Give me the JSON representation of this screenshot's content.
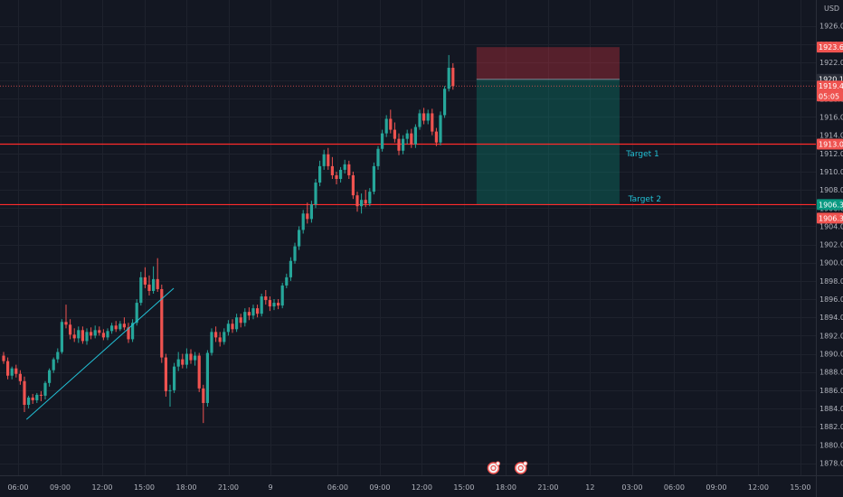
{
  "currency": "USD",
  "chart_data": {
    "type": "candlestick",
    "symbol_currency": "USD",
    "ylim": [
      1878,
      1928
    ],
    "y_ticks": [
      "1878.00",
      "1880.00",
      "1882.00",
      "1884.00",
      "1886.00",
      "1888.00",
      "1890.00",
      "1892.00",
      "1894.00",
      "1896.00",
      "1898.00",
      "1900.00",
      "1902.00",
      "1904.00",
      "1906.00",
      "1908.00",
      "1910.00",
      "1912.00",
      "1914.00",
      "1916.00",
      "1918.00",
      "1920.00",
      "1922.00",
      "1924.00",
      "1926.00"
    ],
    "x_ticks": [
      {
        "label": "06:00",
        "pos": 0.0
      },
      {
        "label": "09:00",
        "pos": 1.0
      },
      {
        "label": "12:00",
        "pos": 2.0
      },
      {
        "label": "15:00",
        "pos": 3.0
      },
      {
        "label": "18:00",
        "pos": 4.0
      },
      {
        "label": "21:00",
        "pos": 5.0
      },
      {
        "label": "9",
        "pos": 6.0
      },
      {
        "label": "06:00",
        "pos": 7.6
      },
      {
        "label": "09:00",
        "pos": 8.6
      },
      {
        "label": "12:00",
        "pos": 9.6
      },
      {
        "label": "15:00",
        "pos": 10.6
      },
      {
        "label": "18:00",
        "pos": 11.6
      },
      {
        "label": "21:00",
        "pos": 12.6
      },
      {
        "label": "12",
        "pos": 13.6
      },
      {
        "label": "03:00",
        "pos": 14.6
      },
      {
        "label": "06:00",
        "pos": 15.6
      },
      {
        "label": "09:00",
        "pos": 16.6
      },
      {
        "label": "12:00",
        "pos": 17.6
      },
      {
        "label": "15:00",
        "pos": 18.6
      }
    ],
    "colors": {
      "up": "#26a69a",
      "down": "#ef5350",
      "horizontal_line": "#ff2b2b",
      "trendline": "#22c1d6",
      "stop_zone": "rgba(242,54,69,0.30)",
      "target_zone": "rgba(8,153,129,0.30)"
    },
    "horizontal_lines": [
      {
        "value": 1913.02,
        "label": "1913.02"
      },
      {
        "value": 1906.38,
        "label": "1906.38"
      }
    ],
    "price_badges": [
      {
        "label": "1923.67",
        "value": 1923.67,
        "color": "#ef5350"
      },
      {
        "label": "1920.14",
        "value": 1920.14,
        "color": "#2a2e39"
      },
      {
        "label": "1919.40",
        "value": 1919.4,
        "color": "#ef5350"
      },
      {
        "label": "05:05",
        "value": 1918.3,
        "color": "#ef5350"
      },
      {
        "label": "1913.02",
        "value": 1913.02,
        "color": "#ef5350"
      },
      {
        "label": "1906.38",
        "value": 1906.38,
        "color": "#089981"
      },
      {
        "label": "1906.38",
        "value": 1904.9,
        "color": "#ef5350"
      }
    ],
    "position_tool": {
      "entry": 1920.14,
      "stop": 1923.67,
      "target": 1906.38,
      "t_start": 10.9,
      "t_end": 14.3
    },
    "trendline": {
      "from": {
        "t": 0.2,
        "price": 1882.8
      },
      "to": {
        "t": 3.7,
        "price": 1897.2
      }
    },
    "annotations": [
      {
        "text": "Target 1",
        "t": 14.85,
        "price": 1912.0
      },
      {
        "text": "Target 2",
        "t": 14.9,
        "price": 1907.0
      }
    ],
    "event_markers": [
      {
        "t": 11.3
      },
      {
        "t": 11.95
      }
    ],
    "candles": [
      [
        1889.8,
        1890.2,
        1888.9,
        1889.2
      ],
      [
        1889.2,
        1889.6,
        1887.2,
        1887.6
      ],
      [
        1887.6,
        1888.6,
        1887.2,
        1888.4
      ],
      [
        1888.4,
        1888.8,
        1887.4,
        1887.8
      ],
      [
        1887.8,
        1888.2,
        1886.6,
        1887.0
      ],
      [
        1887.0,
        1887.5,
        1883.6,
        1884.4
      ],
      [
        1884.4,
        1885.4,
        1884.0,
        1885.2
      ],
      [
        1885.2,
        1885.6,
        1884.5,
        1884.9
      ],
      [
        1884.9,
        1885.7,
        1884.6,
        1885.5
      ],
      [
        1885.5,
        1885.9,
        1884.8,
        1885.4
      ],
      [
        1885.4,
        1887.0,
        1885.0,
        1886.8
      ],
      [
        1886.8,
        1888.4,
        1886.4,
        1888.2
      ],
      [
        1888.2,
        1889.6,
        1887.9,
        1889.4
      ],
      [
        1889.4,
        1890.6,
        1889.0,
        1890.2
      ],
      [
        1890.2,
        1893.8,
        1890.0,
        1893.5
      ],
      [
        1893.5,
        1895.4,
        1892.8,
        1893.2
      ],
      [
        1893.2,
        1893.8,
        1891.6,
        1892.1
      ],
      [
        1892.1,
        1892.8,
        1891.3,
        1891.7
      ],
      [
        1891.7,
        1893.0,
        1891.2,
        1892.6
      ],
      [
        1892.6,
        1893.0,
        1891.1,
        1891.4
      ],
      [
        1891.4,
        1892.8,
        1891.0,
        1892.4
      ],
      [
        1892.4,
        1892.9,
        1891.6,
        1892.0
      ],
      [
        1892.0,
        1893.1,
        1891.7,
        1892.6
      ],
      [
        1892.6,
        1893.0,
        1892.0,
        1892.3
      ],
      [
        1892.3,
        1892.7,
        1891.5,
        1891.8
      ],
      [
        1891.8,
        1892.8,
        1891.5,
        1892.5
      ],
      [
        1892.5,
        1893.4,
        1892.2,
        1893.1
      ],
      [
        1893.1,
        1893.6,
        1892.4,
        1892.7
      ],
      [
        1892.7,
        1893.6,
        1892.5,
        1893.3
      ],
      [
        1893.3,
        1894.0,
        1892.6,
        1892.9
      ],
      [
        1892.9,
        1893.4,
        1891.2,
        1891.6
      ],
      [
        1891.6,
        1893.8,
        1891.3,
        1893.4
      ],
      [
        1893.4,
        1896.0,
        1893.1,
        1895.6
      ],
      [
        1895.6,
        1899.0,
        1895.3,
        1898.4
      ],
      [
        1898.4,
        1899.5,
        1897.2,
        1897.6
      ],
      [
        1897.6,
        1898.6,
        1896.4,
        1896.9
      ],
      [
        1896.9,
        1899.6,
        1896.6,
        1898.2
      ],
      [
        1898.2,
        1900.5,
        1896.8,
        1897.1
      ],
      [
        1897.1,
        1897.6,
        1889.0,
        1889.6
      ],
      [
        1889.6,
        1890.0,
        1885.3,
        1885.9
      ],
      [
        1885.9,
        1886.6,
        1884.2,
        1886.0
      ],
      [
        1886.0,
        1889.0,
        1885.7,
        1888.6
      ],
      [
        1888.6,
        1890.2,
        1888.1,
        1889.4
      ],
      [
        1889.4,
        1890.0,
        1888.4,
        1888.8
      ],
      [
        1888.8,
        1890.6,
        1888.4,
        1890.0
      ],
      [
        1890.0,
        1890.5,
        1888.9,
        1889.3
      ],
      [
        1889.3,
        1890.2,
        1888.7,
        1889.8
      ],
      [
        1889.8,
        1890.1,
        1885.8,
        1886.2
      ],
      [
        1886.2,
        1886.6,
        1882.4,
        1884.6
      ],
      [
        1884.6,
        1890.4,
        1884.2,
        1890.1
      ],
      [
        1890.1,
        1892.8,
        1889.8,
        1892.4
      ],
      [
        1892.4,
        1893.0,
        1891.3,
        1891.8
      ],
      [
        1891.8,
        1892.4,
        1890.8,
        1891.3
      ],
      [
        1891.3,
        1892.8,
        1891.0,
        1892.4
      ],
      [
        1892.4,
        1893.7,
        1892.0,
        1893.3
      ],
      [
        1893.3,
        1893.8,
        1892.3,
        1892.7
      ],
      [
        1892.7,
        1894.4,
        1892.4,
        1894.0
      ],
      [
        1894.0,
        1894.4,
        1892.9,
        1893.4
      ],
      [
        1893.4,
        1895.0,
        1893.0,
        1894.6
      ],
      [
        1894.6,
        1895.1,
        1893.7,
        1894.2
      ],
      [
        1894.2,
        1895.4,
        1893.8,
        1895.0
      ],
      [
        1895.0,
        1895.4,
        1894.0,
        1894.4
      ],
      [
        1894.4,
        1896.6,
        1894.1,
        1896.3
      ],
      [
        1896.3,
        1897.0,
        1895.4,
        1895.9
      ],
      [
        1895.9,
        1896.3,
        1894.7,
        1895.2
      ],
      [
        1895.2,
        1896.0,
        1894.8,
        1895.6
      ],
      [
        1895.6,
        1896.0,
        1894.9,
        1895.3
      ],
      [
        1895.3,
        1897.8,
        1895.0,
        1897.5
      ],
      [
        1897.5,
        1898.8,
        1897.2,
        1898.4
      ],
      [
        1898.4,
        1900.6,
        1898.0,
        1900.2
      ],
      [
        1900.2,
        1902.2,
        1899.9,
        1901.8
      ],
      [
        1901.8,
        1904.0,
        1901.4,
        1903.6
      ],
      [
        1903.6,
        1905.8,
        1903.2,
        1905.4
      ],
      [
        1905.4,
        1906.6,
        1904.3,
        1904.8
      ],
      [
        1904.8,
        1906.8,
        1904.4,
        1906.4
      ],
      [
        1906.4,
        1909.2,
        1906.0,
        1908.8
      ],
      [
        1908.8,
        1911.2,
        1908.4,
        1910.6
      ],
      [
        1910.6,
        1912.4,
        1910.2,
        1911.9
      ],
      [
        1911.9,
        1912.6,
        1910.2,
        1910.6
      ],
      [
        1910.6,
        1911.6,
        1909.2,
        1909.6
      ],
      [
        1909.6,
        1910.0,
        1908.6,
        1909.2
      ],
      [
        1909.2,
        1910.5,
        1908.8,
        1910.2
      ],
      [
        1910.2,
        1911.3,
        1909.8,
        1910.8
      ],
      [
        1910.8,
        1911.2,
        1909.2,
        1909.6
      ],
      [
        1909.6,
        1910.0,
        1907.0,
        1907.4
      ],
      [
        1907.4,
        1907.8,
        1905.6,
        1906.2
      ],
      [
        1906.2,
        1907.6,
        1905.4,
        1906.9
      ],
      [
        1906.9,
        1908.0,
        1906.1,
        1906.5
      ],
      [
        1906.5,
        1908.2,
        1906.2,
        1907.8
      ],
      [
        1907.8,
        1911.0,
        1907.5,
        1910.6
      ],
      [
        1910.6,
        1912.8,
        1910.2,
        1912.5
      ],
      [
        1912.5,
        1914.6,
        1912.2,
        1914.2
      ],
      [
        1914.2,
        1916.2,
        1913.8,
        1915.8
      ],
      [
        1915.8,
        1916.8,
        1914.2,
        1914.6
      ],
      [
        1914.6,
        1915.4,
        1913.2,
        1913.6
      ],
      [
        1913.6,
        1914.2,
        1911.8,
        1912.3
      ],
      [
        1912.3,
        1914.0,
        1911.9,
        1913.6
      ],
      [
        1913.6,
        1914.6,
        1913.0,
        1914.2
      ],
      [
        1914.2,
        1914.7,
        1912.6,
        1913.0
      ],
      [
        1913.0,
        1915.2,
        1912.6,
        1914.9
      ],
      [
        1914.9,
        1916.8,
        1914.6,
        1916.4
      ],
      [
        1916.4,
        1917.0,
        1915.2,
        1915.6
      ],
      [
        1915.6,
        1916.8,
        1915.2,
        1916.4
      ],
      [
        1916.4,
        1916.9,
        1914.0,
        1914.4
      ],
      [
        1914.4,
        1914.8,
        1912.8,
        1913.2
      ],
      [
        1913.2,
        1916.6,
        1912.9,
        1916.2
      ],
      [
        1916.2,
        1919.4,
        1915.9,
        1919.1
      ],
      [
        1919.1,
        1922.8,
        1918.8,
        1921.4
      ],
      [
        1921.4,
        1921.9,
        1919.0,
        1919.4
      ]
    ]
  }
}
